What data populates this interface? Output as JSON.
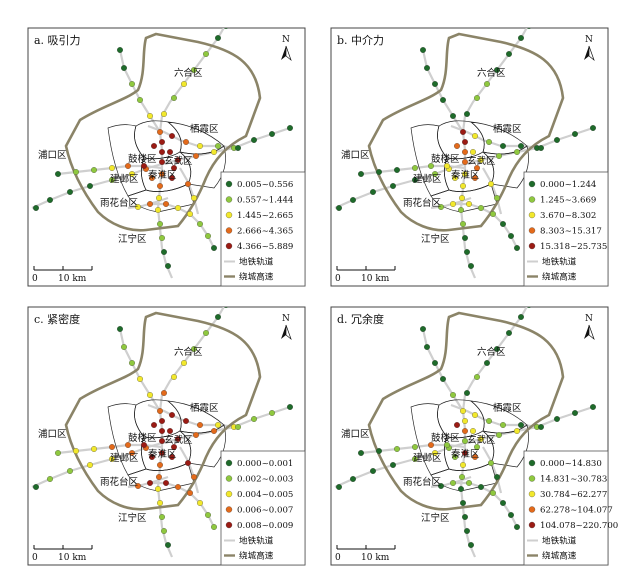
{
  "panels": [
    {
      "title": "a. 吸引力",
      "legend": [
        {
          "label": "0.005~0.556",
          "color": "#1e6b2a"
        },
        {
          "label": "0.557~1.444",
          "color": "#8fc83f"
        },
        {
          "label": "1.445~2.665",
          "color": "#f2e82c"
        },
        {
          "label": "2.666~4.365",
          "color": "#e36a1b"
        },
        {
          "label": "4.366~5.889",
          "color": "#9b1b14"
        }
      ]
    },
    {
      "title": "b. 中介力",
      "legend": [
        {
          "label": "0.000~1.244",
          "color": "#1e6b2a"
        },
        {
          "label": "1.245~3.669",
          "color": "#8fc83f"
        },
        {
          "label": "3.670~8.302",
          "color": "#f2e82c"
        },
        {
          "label": "8.303~15.317",
          "color": "#e36a1b"
        },
        {
          "label": "15.318~25.735",
          "color": "#9b1b14"
        }
      ]
    },
    {
      "title": "c. 紧密度",
      "legend": [
        {
          "label": "0.000~0.001",
          "color": "#1e6b2a"
        },
        {
          "label": "0.002~0.003",
          "color": "#8fc83f"
        },
        {
          "label": "0.004~0.005",
          "color": "#f2e82c"
        },
        {
          "label": "0.006~0.007",
          "color": "#e36a1b"
        },
        {
          "label": "0.008~0.009",
          "color": "#9b1b14"
        }
      ]
    },
    {
      "title": "d. 冗余度",
      "legend": [
        {
          "label": "0.000~14.830",
          "color": "#1e6b2a"
        },
        {
          "label": "14.831~30.783",
          "color": "#8fc83f"
        },
        {
          "label": "30.784~62.277",
          "color": "#f2e82c"
        },
        {
          "label": "62.278~104.077",
          "color": "#e36a1b"
        },
        {
          "label": "104.078~220.700",
          "color": "#9b1b14"
        }
      ]
    }
  ],
  "common": {
    "metro_label": "地铁轨道",
    "ring_label": "绕城高速",
    "scale_zero": "0",
    "scale_km": "10 km",
    "north": "N",
    "districts": {
      "liuhe": "六合区",
      "qixia": "栖霞区",
      "pukou": "浦口区",
      "gulou": "鼓楼区",
      "xuanwu": "玄武区",
      "qinhuai": "秦淮区",
      "jianye": "建邺区",
      "yuhuatai": "雨花台区",
      "jiangning": "江宁区"
    }
  },
  "colors": {
    "ring": "#8b8468",
    "metro": "#cfcfcf",
    "district_line": "#222222",
    "frame": "#444444"
  }
}
